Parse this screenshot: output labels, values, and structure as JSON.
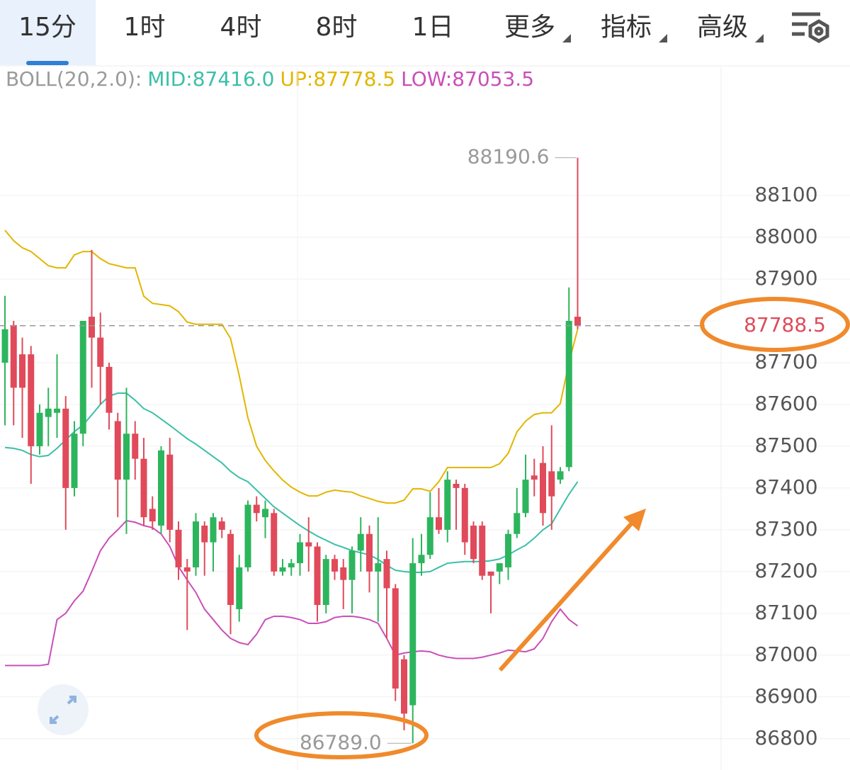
{
  "chart_data": {
    "type": "candlestick",
    "tabs": [
      "15分",
      "1时",
      "4时",
      "8时",
      "1日",
      "更多",
      "指标",
      "高级"
    ],
    "indicator": {
      "label": "BOLL(20,2.0):",
      "mid": "MID:87416.0",
      "up": "UP:87778.5",
      "low": "LOW:87053.5"
    },
    "up_color": "#2db55d",
    "down_color": "#e04a5a",
    "candles": {
      "open": [
        87700,
        87790,
        87720,
        87720,
        87500,
        87570,
        87580,
        87590,
        87400,
        87530,
        87810,
        87760,
        87690,
        87560,
        87420,
        87530,
        87470,
        87350,
        87310,
        87480,
        87300,
        87210,
        87210,
        87310,
        87270,
        87320,
        87290,
        87110,
        87210,
        87360,
        87330,
        87340,
        87200,
        87210,
        87220,
        87270,
        87260,
        87120,
        87230,
        87210,
        87180,
        87250,
        87290,
        87200,
        87230,
        87160,
        86990,
        86880,
        87220,
        87240,
        87330,
        87300,
        87410,
        87400,
        87310,
        87310,
        87200,
        87200,
        87210,
        87290,
        87340,
        87430,
        87460,
        87440,
        87420,
        87450,
        87810
      ],
      "high": [
        87860,
        87800,
        87760,
        87740,
        87600,
        87640,
        87720,
        87620,
        87560,
        87800,
        87970,
        87820,
        87700,
        87580,
        87640,
        87560,
        87520,
        87380,
        87500,
        87520,
        87320,
        87230,
        87340,
        87320,
        87340,
        87330,
        87300,
        87240,
        87370,
        87380,
        87370,
        87350,
        87230,
        87230,
        87290,
        87330,
        87270,
        87240,
        87240,
        87230,
        87260,
        87330,
        87310,
        87330,
        87250,
        87170,
        87000,
        87280,
        87290,
        87390,
        87400,
        87440,
        87420,
        87410,
        87320,
        87320,
        87200,
        87220,
        87300,
        87400,
        87480,
        87470,
        87500,
        87550,
        87450,
        87880,
        88190.6
      ],
      "low": [
        87550,
        87550,
        87520,
        87410,
        87480,
        87500,
        87520,
        87300,
        87380,
        87500,
        87640,
        87600,
        87540,
        87330,
        87290,
        87420,
        87310,
        87300,
        87290,
        87270,
        87180,
        87060,
        87190,
        87190,
        87200,
        87280,
        87050,
        87080,
        87200,
        87320,
        87280,
        87190,
        87190,
        87190,
        87190,
        87200,
        87080,
        87100,
        87180,
        87110,
        87100,
        87200,
        87150,
        87080,
        87040,
        86890,
        86820,
        86789,
        87190,
        87230,
        87290,
        87270,
        87300,
        87240,
        87220,
        87180,
        87100,
        87170,
        87180,
        87280,
        87330,
        87380,
        87310,
        87300,
        87410,
        87440,
        87780
      ],
      "close": [
        87780,
        87640,
        87640,
        87500,
        87580,
        87590,
        87590,
        87400,
        87530,
        87800,
        87760,
        87690,
        87580,
        87420,
        87530,
        87470,
        87330,
        87320,
        87490,
        87300,
        87210,
        87200,
        87320,
        87270,
        87330,
        87300,
        87120,
        87210,
        87360,
        87340,
        87350,
        87200,
        87210,
        87220,
        87270,
        87260,
        87120,
        87230,
        87200,
        87180,
        87250,
        87290,
        87200,
        87220,
        87160,
        86920,
        86860,
        87220,
        87240,
        87330,
        87300,
        87420,
        87400,
        87270,
        87230,
        87190,
        87190,
        87220,
        87290,
        87340,
        87420,
        87420,
        87340,
        87380,
        87440,
        87800,
        87788.5
      ]
    },
    "bands": [
      {
        "color": "#3bbfa8",
        "values": [
          87497,
          87495,
          87490,
          87480,
          87475,
          87478,
          87495,
          87515,
          87535,
          87551,
          87575,
          87600,
          87620,
          87627,
          87627,
          87610,
          87590,
          87580,
          87565,
          87550,
          87534,
          87518,
          87505,
          87490,
          87475,
          87460,
          87440,
          87425,
          87415,
          87395,
          87375,
          87355,
          87340,
          87325,
          87310,
          87297,
          87285,
          87275,
          87265,
          87258,
          87250,
          87245,
          87240,
          87229,
          87215,
          87203,
          87200,
          87198,
          87198,
          87200,
          87210,
          87220,
          87222,
          87224,
          87224,
          87224,
          87226,
          87230,
          87240,
          87252,
          87263,
          87280,
          87300,
          87314,
          87350,
          87385,
          87415
        ]
      },
      {
        "color": "#e2b600",
        "values": [
          88017,
          87992,
          87975,
          87966,
          87949,
          87932,
          87927,
          87927,
          87958,
          87966,
          87966,
          87949,
          87937,
          87932,
          87927,
          87927,
          87859,
          87842,
          87839,
          87836,
          87822,
          87797,
          87792,
          87792,
          87792,
          87792,
          87758,
          87669,
          87568,
          87500,
          87466,
          87441,
          87419,
          87402,
          87390,
          87381,
          87381,
          87390,
          87395,
          87392,
          87390,
          87381,
          87375,
          87368,
          87364,
          87364,
          87371,
          87398,
          87398,
          87392,
          87415,
          87449,
          87449,
          87449,
          87449,
          87449,
          87449,
          87458,
          87483,
          87534,
          87560,
          87576,
          87580,
          87580,
          87602,
          87700,
          87780
        ]
      },
      {
        "color": "#c94fb8",
        "values": [
          86975,
          86975,
          86975,
          86975,
          86975,
          86978,
          87085,
          87100,
          87130,
          87153,
          87200,
          87250,
          87280,
          87300,
          87322,
          87318,
          87310,
          87305,
          87290,
          87260,
          87212,
          87180,
          87150,
          87110,
          87085,
          87060,
          87040,
          87030,
          87025,
          87050,
          87085,
          87093,
          87093,
          87090,
          87085,
          87076,
          87076,
          87080,
          87090,
          87093,
          87093,
          87090,
          87085,
          87076,
          87040,
          87000,
          87005,
          87008,
          87010,
          87008,
          87000,
          86995,
          86992,
          86992,
          86992,
          86995,
          87000,
          87005,
          87012,
          87010,
          87008,
          87015,
          87040,
          87080,
          87110,
          87085,
          87070
        ]
      }
    ],
    "last_price": 87788.5,
    "high_label": 88190.6,
    "low_label": {
      "value": 86789,
      "label": "86789.0"
    },
    "ylim": [
      86725,
      88407
    ],
    "yticks": [
      86800,
      86900,
      87000,
      87100,
      87200,
      87300,
      87400,
      87500,
      87600,
      87700,
      87800,
      87900,
      88000,
      88100
    ],
    "grid": true
  }
}
